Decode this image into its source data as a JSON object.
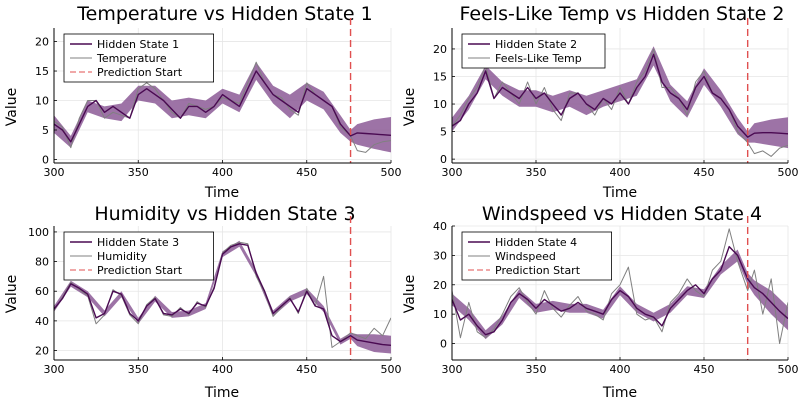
{
  "colors": {
    "hidden": "#4a0a52",
    "band": "#8c5a96",
    "observed": "#808080",
    "prediction": "#e05050"
  },
  "chart_data": [
    {
      "type": "line",
      "title": "Temperature vs Hidden State 1",
      "xlabel": "Time",
      "ylabel": "Value",
      "xlim": [
        300,
        500
      ],
      "ylim": [
        -0.6,
        22.3
      ],
      "xticks": [
        300,
        350,
        400,
        450,
        500
      ],
      "yticks": [
        0,
        5,
        10,
        15,
        20
      ],
      "grid": true,
      "legend": "top-left",
      "prediction_start": 476,
      "series": [
        {
          "name": "Hidden State 1",
          "role": "hidden",
          "x": [
            300,
            305,
            310,
            315,
            320,
            325,
            330,
            335,
            340,
            345,
            350,
            355,
            360,
            365,
            370,
            375,
            380,
            385,
            390,
            395,
            400,
            405,
            410,
            415,
            420,
            425,
            430,
            435,
            440,
            445,
            450,
            455,
            460,
            465,
            470,
            476,
            480,
            485,
            490,
            495,
            500
          ],
          "y": [
            6,
            5,
            3,
            6,
            9,
            10,
            8,
            9,
            8,
            7,
            11,
            12,
            11,
            10,
            8.5,
            7,
            9,
            9,
            8,
            9,
            11,
            10,
            9,
            12,
            15,
            13,
            11,
            10,
            9,
            8,
            12,
            11,
            10,
            9,
            6,
            4,
            4.5,
            4.4,
            4.3,
            4.2,
            4.1
          ]
        },
        {
          "name": "Temperature",
          "role": "observed",
          "x": [
            300,
            305,
            310,
            315,
            320,
            325,
            330,
            335,
            340,
            345,
            350,
            355,
            360,
            365,
            370,
            375,
            380,
            385,
            390,
            395,
            400,
            405,
            410,
            415,
            420,
            425,
            430,
            435,
            440,
            445,
            450,
            455,
            460,
            465,
            470,
            476,
            480,
            485,
            490,
            495,
            500
          ],
          "y": [
            6.5,
            5.5,
            2,
            7,
            10,
            10,
            7,
            8,
            7.5,
            7,
            12,
            13,
            12,
            10,
            8,
            7,
            9.5,
            9,
            8.5,
            9,
            10.5,
            10,
            9.5,
            13,
            16.5,
            13,
            11,
            10.5,
            8.5,
            7.5,
            13,
            11,
            10,
            9,
            5.5,
            4,
            1.5,
            1.2,
            2.5,
            3,
            3.2
          ]
        },
        {
          "name": "Prediction Start",
          "role": "prediction"
        }
      ],
      "band": {
        "x": [
          300,
          310,
          320,
          330,
          340,
          350,
          360,
          370,
          380,
          390,
          400,
          410,
          420,
          430,
          440,
          450,
          460,
          470,
          476,
          480,
          490,
          500
        ],
        "lower": [
          4.5,
          2,
          8,
          7,
          6.5,
          10,
          9.5,
          7,
          7.5,
          7,
          9.5,
          8,
          13.5,
          9.5,
          7,
          10,
          8.5,
          4.5,
          3,
          2.5,
          1.8,
          1.2
        ],
        "upper": [
          7.5,
          4,
          10,
          9,
          9.5,
          12.5,
          12.5,
          10,
          10.5,
          10,
          12,
          11,
          16.5,
          12.5,
          11,
          13,
          11.5,
          7.5,
          5,
          6,
          6.8,
          7.2
        ]
      }
    },
    {
      "type": "line",
      "title": "Feels-Like Temp vs Hidden State 2",
      "xlabel": "Time",
      "ylabel": "Value",
      "xlim": [
        300,
        500
      ],
      "ylim": [
        -0.7,
        23.8
      ],
      "xticks": [
        300,
        350,
        400,
        450,
        500
      ],
      "yticks": [
        0,
        5,
        10,
        15,
        20
      ],
      "grid": true,
      "legend": "top-left",
      "prediction_start": 476,
      "series": [
        {
          "name": "Hidden State 2",
          "role": "hidden",
          "x": [
            300,
            305,
            310,
            315,
            320,
            325,
            330,
            335,
            340,
            345,
            350,
            355,
            360,
            365,
            370,
            375,
            380,
            385,
            390,
            395,
            400,
            405,
            410,
            415,
            420,
            425,
            430,
            435,
            440,
            445,
            450,
            455,
            460,
            465,
            470,
            476,
            480,
            485,
            490,
            495,
            500
          ],
          "y": [
            6,
            7,
            10,
            12,
            16,
            11,
            13,
            12,
            11,
            13,
            11,
            12,
            10,
            8,
            11,
            12,
            10,
            9,
            11,
            10,
            12,
            10,
            13,
            15,
            19,
            14,
            12,
            11,
            9,
            13,
            15,
            12,
            11,
            9,
            6,
            4,
            4.7,
            4.8,
            4.8,
            4.7,
            4.6
          ]
        },
        {
          "name": "Feels-Like Temp",
          "role": "observed",
          "x": [
            300,
            305,
            310,
            315,
            320,
            325,
            330,
            335,
            340,
            345,
            350,
            355,
            360,
            365,
            370,
            375,
            380,
            385,
            390,
            395,
            400,
            405,
            410,
            415,
            420,
            425,
            430,
            435,
            440,
            445,
            450,
            455,
            460,
            465,
            470,
            476,
            480,
            485,
            490,
            495,
            500
          ],
          "y": [
            6,
            8,
            11,
            13,
            17,
            11,
            14,
            12,
            10,
            14,
            10,
            13,
            9,
            7,
            12,
            12,
            10,
            8,
            11,
            9,
            13,
            10,
            14,
            16,
            20,
            13,
            13,
            11,
            8,
            14,
            16,
            12,
            11,
            9,
            5,
            3,
            1,
            1.5,
            0.5,
            2,
            2.5
          ]
        }
      ],
      "band": {
        "x": [
          300,
          310,
          320,
          330,
          340,
          350,
          360,
          370,
          380,
          390,
          400,
          410,
          420,
          430,
          440,
          450,
          460,
          470,
          476,
          480,
          490,
          500
        ],
        "lower": [
          5,
          9,
          14.5,
          11.5,
          9.5,
          9.5,
          8.5,
          9.5,
          8,
          9.5,
          10.5,
          11.5,
          17,
          10.5,
          7.5,
          13.5,
          9.5,
          4.5,
          3,
          3,
          2.5,
          2
        ],
        "upper": [
          7.5,
          11.5,
          17,
          14,
          12.5,
          12.5,
          11.5,
          12.5,
          11.5,
          12.5,
          13.5,
          14.5,
          20.5,
          13.5,
          10.5,
          16.5,
          12.5,
          7.5,
          5,
          6.5,
          7.2,
          7.6
        ]
      }
    },
    {
      "type": "line",
      "title": "Humidity vs Hidden State 3",
      "xlabel": "Time",
      "ylabel": "Value",
      "xlim": [
        300,
        500
      ],
      "ylim": [
        13.6,
        104
      ],
      "xticks": [
        300,
        350,
        400,
        450,
        500
      ],
      "yticks": [
        20,
        40,
        60,
        80,
        100
      ],
      "grid": true,
      "legend": "top-left",
      "prediction_start": 476,
      "series": [
        {
          "name": "Hidden State 3",
          "role": "hidden",
          "x": [
            300,
            305,
            310,
            315,
            320,
            325,
            330,
            335,
            340,
            345,
            350,
            355,
            360,
            365,
            370,
            375,
            380,
            385,
            390,
            395,
            400,
            405,
            410,
            415,
            420,
            425,
            430,
            435,
            440,
            445,
            450,
            455,
            460,
            465,
            470,
            476,
            480,
            485,
            490,
            495,
            500
          ],
          "y": [
            48,
            55,
            65,
            62,
            58,
            42,
            45,
            60,
            58,
            45,
            40,
            50,
            55,
            45,
            44,
            48,
            45,
            52,
            50,
            62,
            85,
            90,
            92,
            91,
            72,
            60,
            45,
            50,
            55,
            46,
            60,
            50,
            48,
            30,
            26,
            30,
            27,
            26,
            25,
            24,
            23.5
          ]
        },
        {
          "name": "Humidity",
          "role": "observed",
          "x": [
            300,
            305,
            310,
            315,
            320,
            325,
            330,
            335,
            340,
            345,
            350,
            355,
            360,
            365,
            370,
            375,
            380,
            385,
            390,
            395,
            400,
            405,
            410,
            415,
            420,
            425,
            430,
            435,
            440,
            445,
            450,
            455,
            460,
            465,
            470,
            476,
            480,
            485,
            490,
            495,
            500
          ],
          "y": [
            47,
            56,
            66,
            61,
            57,
            38,
            44,
            61,
            57,
            44,
            38,
            51,
            56,
            44,
            43,
            49,
            44,
            53,
            49,
            63,
            86,
            91,
            93,
            92,
            70,
            59,
            43,
            49,
            56,
            45,
            62,
            50,
            70,
            22,
            26,
            32,
            30,
            28,
            35,
            30,
            42
          ]
        },
        {
          "name": "Prediction Start",
          "role": "prediction"
        }
      ],
      "band": {
        "x": [
          300,
          310,
          320,
          330,
          340,
          350,
          360,
          370,
          380,
          390,
          400,
          410,
          420,
          430,
          440,
          450,
          460,
          470,
          476,
          480,
          490,
          500
        ],
        "lower": [
          46,
          63,
          56,
          43,
          56,
          38,
          53,
          42,
          43,
          48,
          83,
          90,
          70,
          43,
          53,
          58,
          46,
          24,
          28,
          23,
          19,
          18
        ],
        "upper": [
          50,
          67,
          60,
          47,
          60,
          42,
          57,
          46,
          47,
          52,
          87,
          94,
          74,
          47,
          57,
          62,
          50,
          28,
          32,
          31,
          31,
          30
        ]
      }
    },
    {
      "type": "line",
      "title": "Windspeed vs Hidden State 4",
      "xlabel": "Time",
      "ylabel": "Value",
      "xlim": [
        300,
        500
      ],
      "ylim": [
        -5.6,
        40
      ],
      "xticks": [
        300,
        350,
        400,
        450,
        500
      ],
      "yticks": [
        0,
        10,
        20,
        30,
        40
      ],
      "grid": true,
      "legend": "top-left",
      "prediction_start": 476,
      "series": [
        {
          "name": "Hidden State 4",
          "role": "hidden",
          "x": [
            300,
            305,
            310,
            315,
            320,
            325,
            330,
            335,
            340,
            345,
            350,
            355,
            360,
            365,
            370,
            375,
            380,
            385,
            390,
            395,
            400,
            405,
            410,
            415,
            420,
            425,
            430,
            435,
            440,
            445,
            450,
            455,
            460,
            465,
            470,
            476,
            480,
            485,
            490,
            495,
            500
          ],
          "y": [
            15,
            8,
            10,
            6,
            3,
            4,
            8,
            14,
            17,
            15,
            12,
            15,
            13,
            11,
            12,
            14,
            12,
            11,
            10,
            15,
            18,
            16,
            12,
            10,
            9,
            6,
            12,
            15,
            18,
            20,
            17,
            22,
            25,
            33,
            30,
            22,
            19,
            17,
            14,
            11,
            8.5
          ]
        },
        {
          "name": "Windspeed",
          "role": "observed",
          "x": [
            300,
            305,
            310,
            315,
            320,
            325,
            330,
            335,
            340,
            345,
            350,
            355,
            360,
            365,
            370,
            375,
            380,
            385,
            390,
            395,
            400,
            405,
            410,
            415,
            420,
            425,
            430,
            435,
            440,
            445,
            450,
            455,
            460,
            465,
            470,
            476,
            480,
            485,
            490,
            495,
            500
          ],
          "y": [
            18,
            2,
            14,
            4,
            2,
            5,
            10,
            16,
            19,
            14,
            10,
            18,
            12,
            9,
            13,
            16,
            11,
            10,
            8,
            17,
            20,
            26,
            10,
            8,
            9,
            4,
            14,
            17,
            22,
            18,
            16,
            25,
            28,
            39,
            28,
            18,
            25,
            10,
            22,
            0,
            14
          ]
        },
        {
          "name": "Prediction Start",
          "role": "prediction"
        }
      ],
      "band": {
        "x": [
          300,
          310,
          320,
          330,
          340,
          350,
          360,
          370,
          380,
          390,
          400,
          410,
          420,
          430,
          440,
          450,
          460,
          470,
          476,
          480,
          490,
          500
        ],
        "lower": [
          13,
          8,
          1.5,
          6.5,
          15.5,
          10.5,
          11.5,
          10.5,
          10.5,
          8.5,
          16.5,
          10.5,
          7.5,
          10.5,
          16.5,
          15.5,
          23.5,
          28,
          20,
          16.5,
          10,
          4.5
        ],
        "upper": [
          17,
          12,
          4.5,
          9.5,
          18.5,
          13.5,
          14.5,
          13.5,
          13.5,
          11.5,
          19.5,
          13.5,
          10.5,
          13.5,
          19.5,
          18.5,
          26.5,
          32,
          24,
          21.5,
          18,
          12.5
        ]
      }
    }
  ]
}
